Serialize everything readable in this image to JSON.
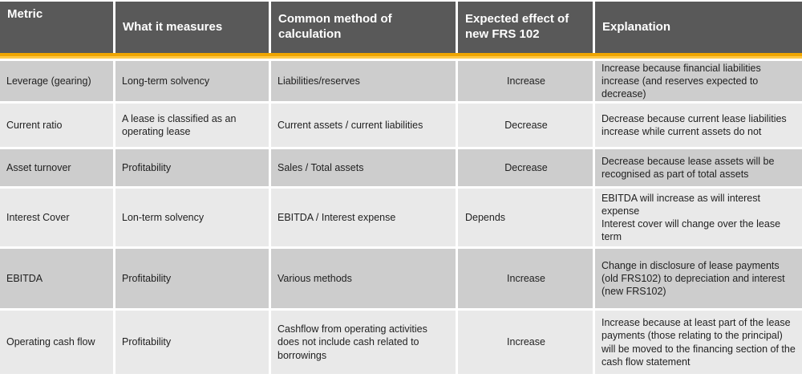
{
  "table": {
    "columns": [
      {
        "key": "metric",
        "label": "Metric"
      },
      {
        "key": "measures",
        "label": "What it measures"
      },
      {
        "key": "calculation",
        "label": "Common  method of calculation"
      },
      {
        "key": "effect",
        "label": "Expected effect of new FRS 102"
      },
      {
        "key": "explanation",
        "label": "Explanation"
      }
    ],
    "rows": [
      {
        "metric": "Leverage (gearing)",
        "measures": "Long-term solvency",
        "calculation": "Liabilities/reserves",
        "effect": "Increase",
        "explanation": "Increase because financial liabilities increase (and reserves expected to decrease)"
      },
      {
        "metric": "Current ratio",
        "measures": "A lease is classified as an operating lease",
        "calculation": "Current assets / current liabilities",
        "effect": "Decrease",
        "explanation": "Decrease because current lease liabilities increase while current assets do not"
      },
      {
        "metric": "Asset turnover",
        "measures": "Profitability",
        "calculation": "Sales / Total assets",
        "effect": "Decrease",
        "explanation": "Decrease because lease assets will be recognised as part of total assets"
      },
      {
        "metric": "Interest Cover",
        "measures": "Lon-term solvency",
        "calculation": "EBITDA / Interest expense",
        "effect": "Depends",
        "explanation": "EBITDA will increase as will interest expense\nInterest cover will change over the lease term"
      },
      {
        "metric": "EBITDA",
        "measures": "Profitability",
        "calculation": "Various methods",
        "effect": "Increase",
        "explanation": "Change in disclosure of lease payments (old FRS102) to depreciation and interest (new FRS102)"
      },
      {
        "metric": "Operating cash flow",
        "measures": "Profitability",
        "calculation": "Cashflow from operating activities does not include cash related to borrowings",
        "effect": "Increase",
        "explanation": "Increase because at least part of the lease payments (those relating to the principal) will be moved to the financing section of the cash flow statement"
      }
    ],
    "colors": {
      "header_bg": "#595959",
      "header_text": "#ffffff",
      "row_dark": "#cdcdcd",
      "row_light": "#e9e9e9",
      "accent_top": "#EFA500",
      "accent_bottom": "#FFC846",
      "body_text": "#1f1f1f"
    }
  }
}
